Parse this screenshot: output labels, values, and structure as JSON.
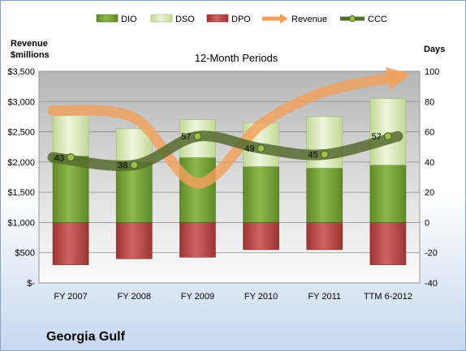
{
  "company": "Georgia Gulf",
  "chart_data": {
    "type": "bar",
    "title": "12-Month Periods",
    "y_left_label": [
      "Revenue",
      "$millions"
    ],
    "y_right_label": "Days",
    "categories": [
      "FY 2007",
      "FY 2008",
      "FY 2009",
      "FY 2010",
      "FY 2011",
      "TTM 6-2012"
    ],
    "y_left": {
      "min": 0,
      "max": 3500,
      "ticks": [
        "$-",
        "$500",
        "$1,000",
        "$1,500",
        "$2,000",
        "$2,500",
        "$3,000",
        "$3,500"
      ]
    },
    "y_right": {
      "min": -40,
      "max": 100,
      "ticks": [
        "-40",
        "-20",
        "0",
        "20",
        "40",
        "60",
        "80",
        "100"
      ]
    },
    "legend": [
      "DIO",
      "DSO",
      "DPO",
      "Revenue",
      "CCC"
    ],
    "series": [
      {
        "name": "DIO",
        "axis": "right",
        "values": [
          44,
          40,
          43,
          37,
          36,
          38
        ],
        "color": "#6e9a2f"
      },
      {
        "name": "DSO",
        "axis": "right",
        "values": [
          27,
          22,
          25,
          29,
          34,
          44
        ],
        "color": "#d6e8b0"
      },
      {
        "name": "DPO",
        "axis": "right",
        "values": [
          -28,
          -24,
          -23,
          -18,
          -18,
          -28
        ],
        "color": "#b94a48"
      },
      {
        "name": "Revenue",
        "axis": "left",
        "values": [
          2850,
          2730,
          1650,
          2620,
          3160,
          3420
        ],
        "color": "#f3a05d"
      },
      {
        "name": "CCC",
        "axis": "right",
        "values": [
          43,
          38,
          57,
          49,
          45,
          57
        ],
        "color": "#556b2f"
      }
    ],
    "ccc_labels": [
      "43",
      "38",
      "57",
      "49",
      "45",
      "57"
    ],
    "grid": true,
    "legend_position": "top"
  }
}
